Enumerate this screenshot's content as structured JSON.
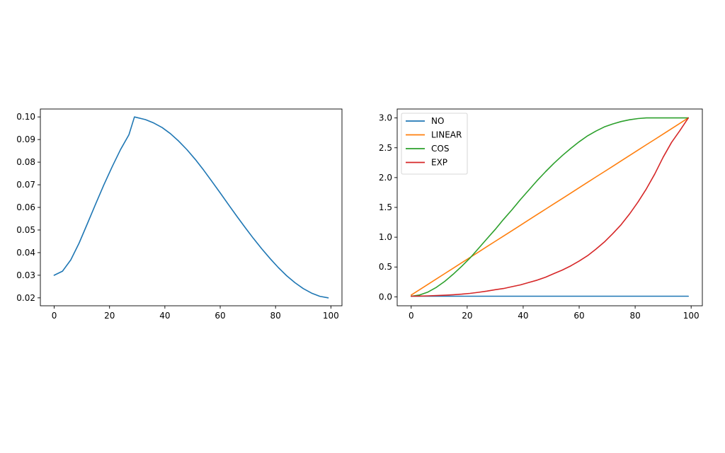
{
  "chart_data": [
    {
      "type": "line",
      "title": "",
      "xlabel": "",
      "ylabel": "",
      "xlim": [
        -5,
        104
      ],
      "ylim": [
        0.0165,
        0.1035
      ],
      "xticks": [
        0,
        20,
        40,
        60,
        80,
        100
      ],
      "yticks": [
        0.02,
        0.03,
        0.04,
        0.05,
        0.06,
        0.07,
        0.08,
        0.09,
        0.1
      ],
      "xtick_labels": [
        "0",
        "20",
        "40",
        "60",
        "80",
        "100"
      ],
      "ytick_labels": [
        "0.02",
        "0.03",
        "0.04",
        "0.05",
        "0.06",
        "0.07",
        "0.08",
        "0.09",
        "0.10"
      ],
      "grid": false,
      "legend": null,
      "x": [
        0,
        3,
        6,
        9,
        12,
        15,
        18,
        21,
        24,
        27,
        29,
        33,
        36,
        39,
        42,
        45,
        48,
        51,
        54,
        57,
        60,
        63,
        66,
        69,
        72,
        75,
        78,
        81,
        84,
        87,
        90,
        93,
        96,
        99
      ],
      "series": [
        {
          "color": "#1f77b4",
          "values": [
            0.03,
            0.0318,
            0.0368,
            0.0442,
            0.0528,
            0.0616,
            0.0701,
            0.0781,
            0.0856,
            0.0921,
            0.1,
            0.0988,
            0.0973,
            0.0953,
            0.0926,
            0.0893,
            0.0855,
            0.0812,
            0.0765,
            0.0715,
            0.0664,
            0.0612,
            0.0561,
            0.0511,
            0.0463,
            0.0417,
            0.0374,
            0.0334,
            0.0298,
            0.0267,
            0.0241,
            0.0221,
            0.0207,
            0.02
          ]
        }
      ]
    },
    {
      "type": "line",
      "title": "",
      "xlabel": "",
      "ylabel": "",
      "xlim": [
        -5,
        104
      ],
      "ylim": [
        -0.15,
        3.15
      ],
      "xticks": [
        0,
        20,
        40,
        60,
        80,
        100
      ],
      "yticks": [
        0.0,
        0.5,
        1.0,
        1.5,
        2.0,
        2.5,
        3.0
      ],
      "xtick_labels": [
        "0",
        "20",
        "40",
        "60",
        "80",
        "100"
      ],
      "ytick_labels": [
        "0.0",
        "0.5",
        "1.0",
        "1.5",
        "2.0",
        "2.5",
        "3.0"
      ],
      "grid": false,
      "legend": "top-left",
      "x": [
        0,
        3,
        6,
        9,
        12,
        15,
        18,
        21,
        24,
        27,
        30,
        33,
        36,
        39,
        42,
        45,
        48,
        51,
        54,
        57,
        60,
        63,
        66,
        69,
        72,
        75,
        78,
        81,
        84,
        87,
        90,
        93,
        96,
        99
      ],
      "series": [
        {
          "name": "NO",
          "color": "#1f77b4",
          "values": [
            0.01,
            0.01,
            0.01,
            0.01,
            0.01,
            0.01,
            0.01,
            0.01,
            0.01,
            0.01,
            0.01,
            0.01,
            0.01,
            0.01,
            0.01,
            0.01,
            0.01,
            0.01,
            0.01,
            0.01,
            0.01,
            0.01,
            0.01,
            0.01,
            0.01,
            0.01,
            0.01,
            0.01,
            0.01,
            0.01,
            0.01,
            0.01,
            0.01,
            0.01
          ]
        },
        {
          "name": "LINEAR",
          "color": "#ff7f0e",
          "values": [
            0.03,
            0.12,
            0.21,
            0.3,
            0.39,
            0.48,
            0.57,
            0.66,
            0.75,
            0.84,
            0.93,
            1.02,
            1.11,
            1.2,
            1.29,
            1.38,
            1.47,
            1.56,
            1.65,
            1.74,
            1.83,
            1.92,
            2.01,
            2.1,
            2.19,
            2.28,
            2.37,
            2.46,
            2.55,
            2.64,
            2.73,
            2.82,
            2.91,
            3.0
          ]
        },
        {
          "name": "COS",
          "color": "#2ca02c",
          "values": [
            0.01,
            0.03,
            0.08,
            0.16,
            0.26,
            0.38,
            0.51,
            0.65,
            0.81,
            0.97,
            1.13,
            1.3,
            1.46,
            1.63,
            1.79,
            1.95,
            2.1,
            2.24,
            2.37,
            2.49,
            2.6,
            2.7,
            2.78,
            2.85,
            2.9,
            2.94,
            2.97,
            2.99,
            3.0,
            3.0,
            3.0,
            3.0,
            3.0,
            3.0
          ]
        },
        {
          "name": "EXP",
          "color": "#d62728",
          "values": [
            0.01,
            0.013,
            0.016,
            0.021,
            0.027,
            0.035,
            0.045,
            0.058,
            0.075,
            0.096,
            0.12,
            0.14,
            0.17,
            0.2,
            0.24,
            0.28,
            0.33,
            0.39,
            0.45,
            0.52,
            0.6,
            0.69,
            0.8,
            0.92,
            1.06,
            1.21,
            1.39,
            1.59,
            1.81,
            2.06,
            2.34,
            2.59,
            2.79,
            3.0
          ]
        }
      ]
    }
  ]
}
